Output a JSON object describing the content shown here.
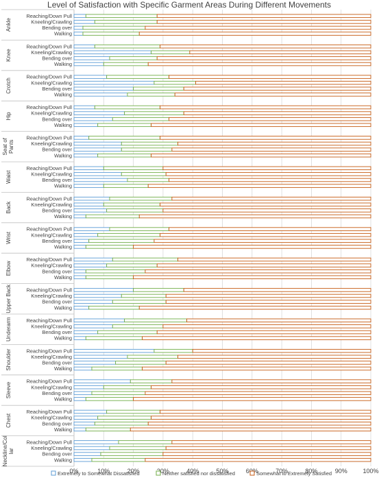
{
  "chart_data": {
    "type": "bar",
    "orientation": "horizontal",
    "stacking": "stacked-100",
    "title": "Level of Satisfaction with Specific Garment Areas During Different Movements",
    "xlim": [
      0,
      100
    ],
    "x_ticks": [
      "0%",
      "10%",
      "20%",
      "30%",
      "40%",
      "50%",
      "60%",
      "70%",
      "80%",
      "90%",
      "100%"
    ],
    "grid": true,
    "legend_position": "bottom",
    "movements": [
      "Reaching/Down Pull",
      "Kneeling/Crawling",
      "Bending over",
      "Walking"
    ],
    "series": [
      {
        "name": "Extremely to Somewhat Dissatisfied",
        "color": "#5b9bd5"
      },
      {
        "name": "Neither satisfied nor dissatisfied",
        "color": "#70ad47"
      },
      {
        "name": "Somewhat to Extremely Satisfied",
        "color": "#c55a11"
      }
    ],
    "groups": [
      {
        "label": "Ankle",
        "values": [
          [
            4,
            24,
            72
          ],
          [
            7,
            21,
            72
          ],
          [
            3,
            21,
            76
          ],
          [
            3,
            19,
            78
          ]
        ]
      },
      {
        "label": "Knee",
        "values": [
          [
            7,
            22,
            71
          ],
          [
            26,
            13,
            61
          ],
          [
            12,
            16,
            72
          ],
          [
            10,
            15,
            75
          ]
        ]
      },
      {
        "label": "Crotch",
        "values": [
          [
            11,
            21,
            68
          ],
          [
            27,
            14,
            59
          ],
          [
            20,
            17,
            63
          ],
          [
            18,
            16,
            66
          ]
        ]
      },
      {
        "label": "Hip",
        "values": [
          [
            7,
            22,
            71
          ],
          [
            17,
            20,
            63
          ],
          [
            13,
            19,
            68
          ],
          [
            8,
            18,
            74
          ]
        ]
      },
      {
        "label": "Seat of Pants",
        "values": [
          [
            5,
            24,
            71
          ],
          [
            16,
            19,
            65
          ],
          [
            16,
            17,
            67
          ],
          [
            8,
            18,
            74
          ]
        ]
      },
      {
        "label": "Waist",
        "values": [
          [
            10,
            20,
            70
          ],
          [
            16,
            15,
            69
          ],
          [
            18,
            14,
            68
          ],
          [
            10,
            15,
            75
          ]
        ]
      },
      {
        "label": "Back",
        "values": [
          [
            12,
            21,
            67
          ],
          [
            10,
            19,
            71
          ],
          [
            11,
            19,
            70
          ],
          [
            4,
            18,
            78
          ]
        ]
      },
      {
        "label": "Wrist",
        "values": [
          [
            12,
            20,
            68
          ],
          [
            8,
            21,
            71
          ],
          [
            5,
            22,
            73
          ],
          [
            4,
            16,
            80
          ]
        ]
      },
      {
        "label": "Elbow",
        "values": [
          [
            13,
            22,
            65
          ],
          [
            11,
            17,
            72
          ],
          [
            4,
            20,
            76
          ],
          [
            4,
            16,
            80
          ]
        ]
      },
      {
        "label": "Upper Back",
        "values": [
          [
            20,
            17,
            63
          ],
          [
            16,
            15,
            69
          ],
          [
            13,
            18,
            69
          ],
          [
            5,
            17,
            78
          ]
        ]
      },
      {
        "label": "Underarm",
        "values": [
          [
            17,
            21,
            62
          ],
          [
            13,
            17,
            70
          ],
          [
            8,
            20,
            72
          ],
          [
            4,
            19,
            77
          ]
        ]
      },
      {
        "label": "Shoulder",
        "values": [
          [
            27,
            13,
            60
          ],
          [
            18,
            17,
            65
          ],
          [
            14,
            17,
            69
          ],
          [
            6,
            17,
            77
          ]
        ]
      },
      {
        "label": "Sleeve",
        "values": [
          [
            19,
            14,
            67
          ],
          [
            10,
            16,
            74
          ],
          [
            6,
            18,
            76
          ],
          [
            4,
            16,
            80
          ]
        ]
      },
      {
        "label": "Chest",
        "values": [
          [
            11,
            18,
            71
          ],
          [
            8,
            18,
            74
          ],
          [
            7,
            18,
            75
          ],
          [
            4,
            15,
            81
          ]
        ]
      },
      {
        "label": "Neckline/Collar",
        "values": [
          [
            15,
            18,
            67
          ],
          [
            12,
            19,
            69
          ],
          [
            9,
            21,
            70
          ],
          [
            6,
            18,
            76
          ]
        ]
      }
    ]
  }
}
